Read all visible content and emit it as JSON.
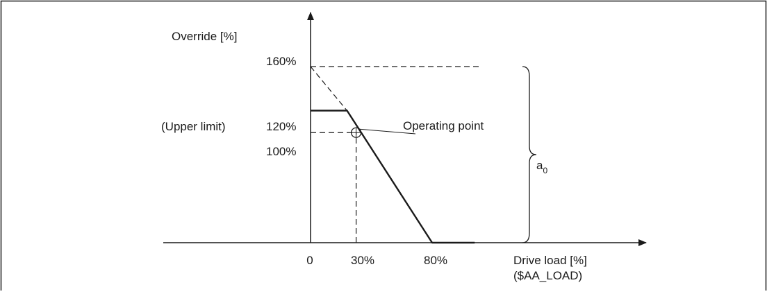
{
  "chart_data": {
    "type": "line",
    "title": "",
    "ylabel": "Override [%]",
    "xlabel": "Drive load [%]",
    "xlabel_sub": "($AA_LOAD)",
    "xticks": [
      {
        "value": 0,
        "label": "0"
      },
      {
        "value": 30,
        "label": "30%"
      },
      {
        "value": 80,
        "label": "80%"
      }
    ],
    "yticks": [
      {
        "value": 100,
        "label": "100%"
      },
      {
        "value": 120,
        "label": "120%"
      },
      {
        "value": 160,
        "label": "160%"
      }
    ],
    "upper_limit_label": "(Upper limit)",
    "series": [
      {
        "style": "solid",
        "points": [
          [
            0,
            120
          ],
          [
            24,
            120
          ],
          [
            80,
            0
          ],
          [
            108,
            0
          ]
        ]
      },
      {
        "style": "dashed",
        "points": [
          [
            0,
            160
          ],
          [
            24,
            120
          ]
        ]
      }
    ],
    "guides": [
      {
        "style": "dashed",
        "points": [
          [
            0,
            100
          ],
          [
            30,
            100
          ]
        ]
      },
      {
        "style": "dashed",
        "points": [
          [
            30,
            0
          ],
          [
            30,
            100
          ]
        ]
      },
      {
        "style": "dashed",
        "points": [
          [
            0,
            160
          ],
          [
            112,
            160
          ]
        ]
      }
    ],
    "operating_point": {
      "x": 30,
      "y": 100,
      "label": "Operating point"
    },
    "a0": {
      "label": "a",
      "subscript": "0",
      "from": 0,
      "to": 160
    }
  }
}
